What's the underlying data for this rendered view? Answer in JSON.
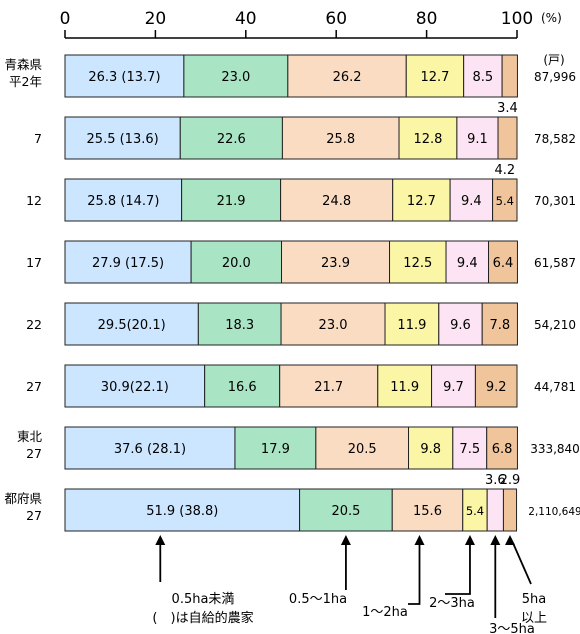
{
  "chart_data": {
    "type": "bar",
    "orientation": "horizontal",
    "stacked": true,
    "xlim": [
      0,
      100
    ],
    "x_ticks": [
      0,
      20,
      40,
      60,
      80,
      100
    ],
    "x_tick_labels": [
      "0",
      "20",
      "40",
      "60",
      "80",
      "100"
    ],
    "x_unit_label": "(%)",
    "total_unit_label": "(戸)",
    "categories": [
      {
        "label_lines": [
          "青森県",
          "平2年"
        ],
        "total": "87,996"
      },
      {
        "label_lines": [
          "7"
        ],
        "total": "78,582"
      },
      {
        "label_lines": [
          "12"
        ],
        "total": "70,301"
      },
      {
        "label_lines": [
          "17"
        ],
        "total": "61,587"
      },
      {
        "label_lines": [
          "22"
        ],
        "total": "54,210"
      },
      {
        "label_lines": [
          "27"
        ],
        "total": "44,781"
      },
      {
        "label_lines": [
          "東北",
          "27"
        ],
        "total": "333,840"
      },
      {
        "label_lines": [
          "都府県",
          "27"
        ],
        "total": "2,110,649"
      }
    ],
    "series": [
      {
        "color": "#cce6ff",
        "values": [
          26.3,
          25.5,
          25.8,
          27.9,
          29.5,
          30.9,
          37.6,
          51.9
        ],
        "labels": [
          "26.3 (13.7)",
          "25.5 (13.6)",
          "25.8 (14.7)",
          "27.9 (17.5)",
          "29.5(20.1)",
          "30.9(22.1)",
          "37.6 (28.1)",
          "51.9 (38.8)"
        ]
      },
      {
        "color": "#a9e4c5",
        "values": [
          23.0,
          22.6,
          21.9,
          20.0,
          18.3,
          16.6,
          17.9,
          20.5
        ],
        "labels": [
          "23.0",
          "22.6",
          "21.9",
          "20.0",
          "18.3",
          "16.6",
          "17.9",
          "20.5"
        ]
      },
      {
        "color": "#fadcc3",
        "values": [
          26.2,
          25.8,
          24.8,
          23.9,
          23.0,
          21.7,
          20.5,
          15.6
        ],
        "labels": [
          "26.2",
          "25.8",
          "24.8",
          "23.9",
          "23.0",
          "21.7",
          "20.5",
          "15.6"
        ]
      },
      {
        "color": "#fbf5a6",
        "values": [
          12.7,
          12.8,
          12.7,
          12.5,
          11.9,
          11.9,
          9.8,
          5.4
        ],
        "labels": [
          "12.7",
          "12.8",
          "12.7",
          "12.5",
          "11.9",
          "11.9",
          "9.8",
          "5.4"
        ]
      },
      {
        "color": "#fce4f4",
        "values": [
          8.5,
          9.1,
          9.4,
          9.4,
          9.6,
          9.7,
          7.5,
          3.6
        ],
        "labels": [
          "8.5",
          "9.1",
          "9.4",
          "9.4",
          "9.6",
          "9.7",
          "7.5",
          ""
        ]
      },
      {
        "color": "#f0c59c",
        "values": [
          3.4,
          4.2,
          5.4,
          6.4,
          7.8,
          9.2,
          6.8,
          2.9
        ],
        "labels": [
          "",
          "",
          "5.4",
          "6.4",
          "7.8",
          "9.2",
          "6.8",
          ""
        ]
      }
    ],
    "above_labels": [
      {
        "row": 1,
        "series": 5,
        "text": "3.4"
      },
      {
        "row": 2,
        "series": 5,
        "text": "4.2"
      },
      {
        "row": 7,
        "series": 4,
        "text": "3.6"
      },
      {
        "row": 7,
        "series": 5,
        "text": "2.9"
      }
    ],
    "annotations": [
      {
        "lines": [
          "0.5ha未満",
          "(　)は自給的農家"
        ],
        "series": 0
      },
      {
        "lines": [
          "0.5〜1ha"
        ],
        "series": 1
      },
      {
        "lines": [
          "1〜2ha"
        ],
        "series": 2
      },
      {
        "lines": [
          "2〜3ha"
        ],
        "series": 3
      },
      {
        "lines": [
          "3〜5ha"
        ],
        "series": 4
      },
      {
        "lines": [
          "5ha",
          "以上"
        ],
        "series": 5
      }
    ]
  }
}
